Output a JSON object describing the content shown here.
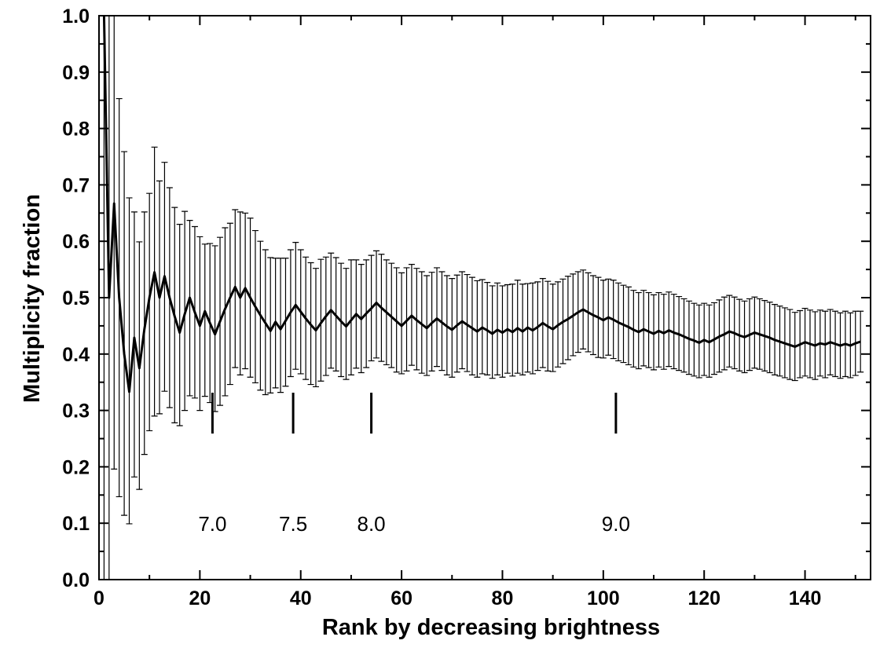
{
  "chart_data": {
    "type": "line",
    "title": "",
    "xlabel": "Rank by decreasing brightness",
    "ylabel": "Multiplicity fraction",
    "xlim": [
      0,
      153
    ],
    "ylim": [
      0.0,
      1.0
    ],
    "x_ticks": [
      0,
      20,
      40,
      60,
      80,
      100,
      120,
      140
    ],
    "x_tick_labels": [
      "0",
      "20",
      "40",
      "60",
      "80",
      "100",
      "120",
      "140"
    ],
    "y_ticks": [
      0.0,
      0.1,
      0.2,
      0.3,
      0.4,
      0.5,
      0.6,
      0.7,
      0.8,
      0.9,
      1.0
    ],
    "y_tick_labels": [
      "0.0",
      "0.1",
      "0.2",
      "0.3",
      "0.4",
      "0.5",
      "0.6",
      "0.7",
      "0.8",
      "0.9",
      "1.0"
    ],
    "grid": false,
    "legend": "none",
    "series": [
      {
        "x": [
          1,
          2,
          3,
          4,
          5,
          6,
          7,
          8,
          9,
          10,
          11,
          12,
          13,
          14,
          15,
          16,
          17,
          18,
          19,
          20,
          21,
          22,
          23,
          24,
          25,
          26,
          27,
          28,
          29,
          30,
          31,
          32,
          33,
          34,
          35,
          36,
          37,
          38,
          39,
          40,
          41,
          42,
          43,
          44,
          45,
          46,
          47,
          48,
          49,
          50,
          51,
          52,
          53,
          54,
          55,
          56,
          57,
          58,
          59,
          60,
          61,
          62,
          63,
          64,
          65,
          66,
          67,
          68,
          69,
          70,
          71,
          72,
          73,
          74,
          75,
          76,
          77,
          78,
          79,
          80,
          81,
          82,
          83,
          84,
          85,
          86,
          87,
          88,
          89,
          90,
          91,
          92,
          93,
          94,
          95,
          96,
          97,
          98,
          99,
          100,
          101,
          102,
          103,
          104,
          105,
          106,
          107,
          108,
          109,
          110,
          111,
          112,
          113,
          114,
          115,
          116,
          117,
          118,
          119,
          120,
          121,
          122,
          123,
          124,
          125,
          126,
          127,
          128,
          129,
          130,
          131,
          132,
          133,
          134,
          135,
          136,
          137,
          138,
          139,
          140,
          141,
          142,
          143,
          144,
          145,
          146,
          147,
          148,
          149,
          150,
          151
        ],
        "y": [
          1.0,
          0.5,
          0.667,
          0.5,
          0.4,
          0.333,
          0.429,
          0.375,
          0.444,
          0.5,
          0.545,
          0.5,
          0.538,
          0.5,
          0.467,
          0.438,
          0.471,
          0.5,
          0.474,
          0.45,
          0.476,
          0.455,
          0.435,
          0.458,
          0.48,
          0.5,
          0.519,
          0.5,
          0.517,
          0.5,
          0.484,
          0.469,
          0.455,
          0.441,
          0.457,
          0.444,
          0.459,
          0.474,
          0.487,
          0.475,
          0.463,
          0.452,
          0.442,
          0.455,
          0.467,
          0.478,
          0.468,
          0.458,
          0.449,
          0.46,
          0.471,
          0.462,
          0.472,
          0.481,
          0.491,
          0.482,
          0.474,
          0.466,
          0.458,
          0.45,
          0.459,
          0.468,
          0.46,
          0.453,
          0.446,
          0.455,
          0.463,
          0.456,
          0.449,
          0.443,
          0.451,
          0.458,
          0.452,
          0.446,
          0.44,
          0.447,
          0.442,
          0.436,
          0.443,
          0.438,
          0.444,
          0.439,
          0.446,
          0.44,
          0.447,
          0.442,
          0.448,
          0.455,
          0.449,
          0.444,
          0.451,
          0.457,
          0.462,
          0.468,
          0.474,
          0.479,
          0.474,
          0.469,
          0.465,
          0.46,
          0.465,
          0.461,
          0.456,
          0.452,
          0.448,
          0.443,
          0.439,
          0.444,
          0.44,
          0.436,
          0.441,
          0.437,
          0.442,
          0.438,
          0.435,
          0.431,
          0.427,
          0.424,
          0.42,
          0.425,
          0.421,
          0.426,
          0.431,
          0.435,
          0.44,
          0.437,
          0.433,
          0.43,
          0.434,
          0.438,
          0.435,
          0.432,
          0.429,
          0.425,
          0.422,
          0.419,
          0.416,
          0.413,
          0.417,
          0.421,
          0.418,
          0.415,
          0.419,
          0.417,
          0.421,
          0.418,
          0.415,
          0.418,
          0.415,
          0.419,
          0.422
        ],
        "y_upper": [
          1.0,
          1.0,
          1.0,
          0.853,
          0.759,
          0.677,
          0.652,
          0.599,
          0.652,
          0.685,
          0.767,
          0.707,
          0.74,
          0.695,
          0.66,
          0.63,
          0.653,
          0.637,
          0.626,
          0.608,
          0.595,
          0.596,
          0.592,
          0.607,
          0.624,
          0.632,
          0.656,
          0.652,
          0.65,
          0.641,
          0.619,
          0.6,
          0.585,
          0.571,
          0.57,
          0.57,
          0.57,
          0.585,
          0.598,
          0.585,
          0.572,
          0.562,
          0.552,
          0.568,
          0.572,
          0.579,
          0.571,
          0.561,
          0.552,
          0.567,
          0.567,
          0.559,
          0.567,
          0.575,
          0.583,
          0.577,
          0.567,
          0.561,
          0.553,
          0.544,
          0.553,
          0.559,
          0.552,
          0.546,
          0.539,
          0.545,
          0.553,
          0.546,
          0.539,
          0.534,
          0.54,
          0.546,
          0.541,
          0.536,
          0.53,
          0.532,
          0.527,
          0.521,
          0.526,
          0.521,
          0.523,
          0.524,
          0.531,
          0.524,
          0.525,
          0.526,
          0.528,
          0.534,
          0.529,
          0.524,
          0.528,
          0.533,
          0.538,
          0.542,
          0.546,
          0.549,
          0.544,
          0.539,
          0.536,
          0.531,
          0.533,
          0.531,
          0.526,
          0.522,
          0.519,
          0.513,
          0.509,
          0.513,
          0.509,
          0.505,
          0.509,
          0.506,
          0.51,
          0.506,
          0.502,
          0.498,
          0.494,
          0.49,
          0.487,
          0.49,
          0.487,
          0.491,
          0.496,
          0.501,
          0.504,
          0.501,
          0.497,
          0.494,
          0.498,
          0.501,
          0.498,
          0.495,
          0.492,
          0.488,
          0.485,
          0.482,
          0.479,
          0.474,
          0.477,
          0.481,
          0.478,
          0.475,
          0.478,
          0.476,
          0.479,
          0.476,
          0.473,
          0.476,
          0.473,
          0.476,
          0.476
        ],
        "y_lower": [
          0.0,
          0.0,
          0.196,
          0.147,
          0.114,
          0.099,
          0.182,
          0.16,
          0.222,
          0.264,
          0.29,
          0.294,
          0.334,
          0.305,
          0.278,
          0.273,
          0.3,
          0.326,
          0.322,
          0.3,
          0.325,
          0.314,
          0.298,
          0.309,
          0.326,
          0.346,
          0.376,
          0.363,
          0.374,
          0.359,
          0.349,
          0.336,
          0.328,
          0.331,
          0.34,
          0.332,
          0.343,
          0.36,
          0.373,
          0.365,
          0.355,
          0.346,
          0.342,
          0.352,
          0.362,
          0.375,
          0.37,
          0.36,
          0.355,
          0.363,
          0.375,
          0.367,
          0.376,
          0.388,
          0.393,
          0.387,
          0.381,
          0.376,
          0.368,
          0.365,
          0.37,
          0.38,
          0.372,
          0.366,
          0.362,
          0.37,
          0.378,
          0.371,
          0.363,
          0.359,
          0.368,
          0.374,
          0.369,
          0.363,
          0.359,
          0.365,
          0.363,
          0.357,
          0.363,
          0.359,
          0.366,
          0.361,
          0.366,
          0.363,
          0.368,
          0.365,
          0.371,
          0.376,
          0.37,
          0.369,
          0.377,
          0.383,
          0.39,
          0.397,
          0.403,
          0.409,
          0.404,
          0.399,
          0.394,
          0.393,
          0.398,
          0.392,
          0.388,
          0.385,
          0.381,
          0.377,
          0.374,
          0.379,
          0.376,
          0.372,
          0.377,
          0.373,
          0.378,
          0.374,
          0.371,
          0.368,
          0.364,
          0.361,
          0.358,
          0.362,
          0.359,
          0.364,
          0.368,
          0.372,
          0.377,
          0.374,
          0.37,
          0.367,
          0.371,
          0.375,
          0.373,
          0.37,
          0.367,
          0.363,
          0.361,
          0.358,
          0.355,
          0.353,
          0.358,
          0.361,
          0.358,
          0.355,
          0.361,
          0.358,
          0.363,
          0.36,
          0.357,
          0.36,
          0.358,
          0.362,
          0.368
        ]
      }
    ],
    "annotations": [
      {
        "x": 22.5,
        "label": "7.0"
      },
      {
        "x": 38.5,
        "label": "7.5"
      },
      {
        "x": 54.0,
        "label": "8.0"
      },
      {
        "x": 102.5,
        "label": "9.0"
      }
    ]
  }
}
